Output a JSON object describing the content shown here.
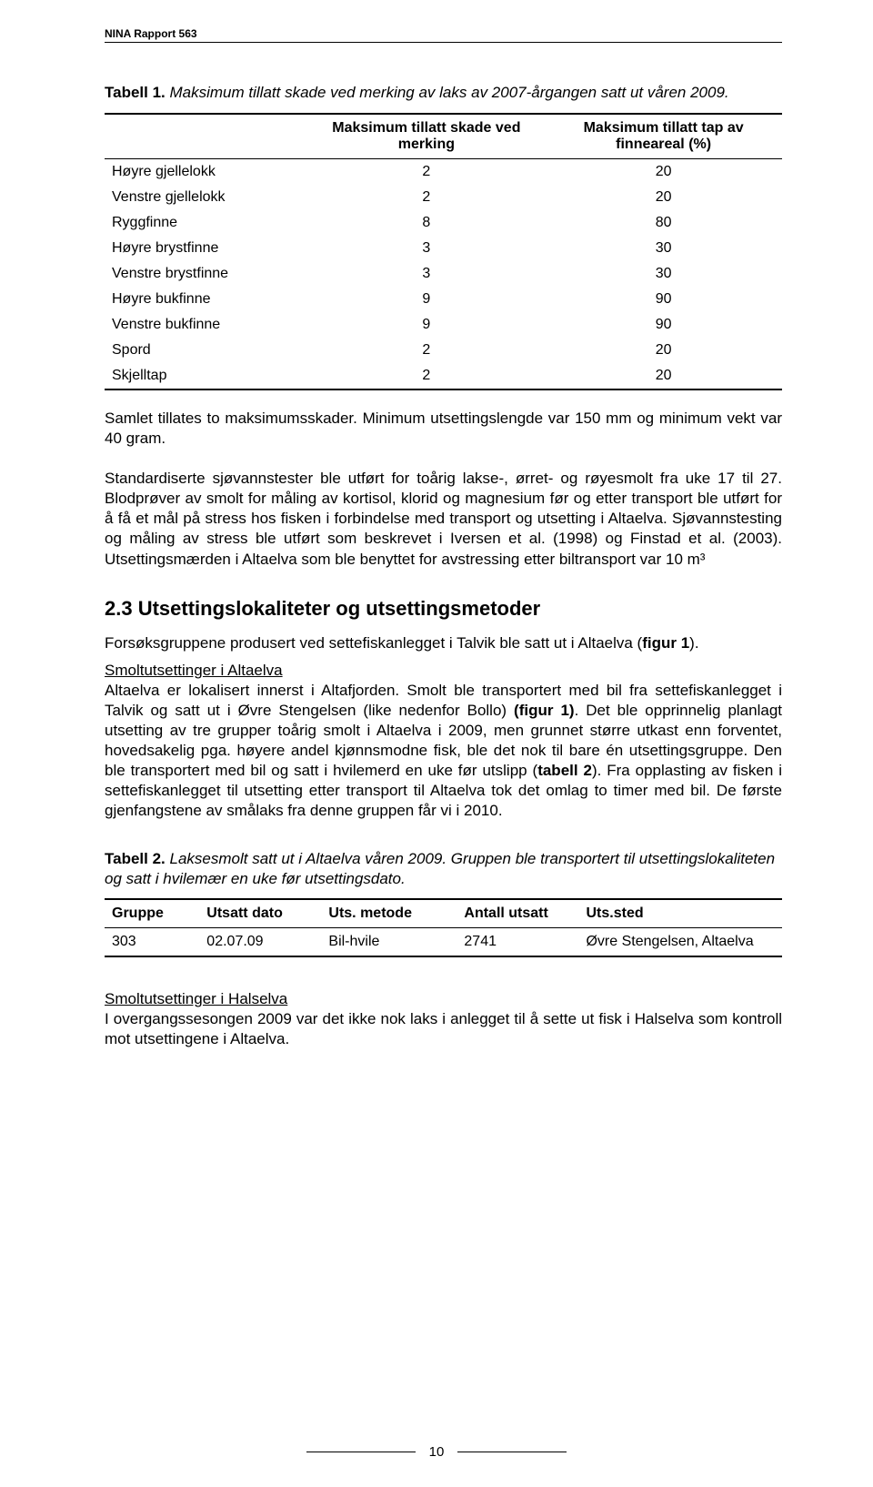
{
  "header": {
    "report_line": "NINA Rapport 563"
  },
  "table1": {
    "caption_bold": "Tabell 1.",
    "caption_rest": "Maksimum tillatt skade ved merking av laks av 2007-årgangen satt ut våren 2009.",
    "columns": [
      "",
      "Maksimum tillatt skade ved merking",
      "Maksimum tillatt tap av finneareal (%)"
    ],
    "rows": [
      [
        "Høyre gjellelokk",
        "2",
        "20"
      ],
      [
        "Venstre gjellelokk",
        "2",
        "20"
      ],
      [
        "Ryggfinne",
        "8",
        "80"
      ],
      [
        "Høyre brystfinne",
        "3",
        "30"
      ],
      [
        "Venstre brystfinne",
        "3",
        "30"
      ],
      [
        "Høyre bukfinne",
        "9",
        "90"
      ],
      [
        "Venstre bukfinne",
        "9",
        "90"
      ],
      [
        "Spord",
        "2",
        "20"
      ],
      [
        "Skjelltap",
        "2",
        "20"
      ]
    ]
  },
  "body": {
    "p1": "Samlet tillates to maksimumsskader. Minimum utsettingslengde var 150 mm og minimum vekt var 40 gram.",
    "p2": "Standardiserte sjøvannstester ble utført for toårig lakse-, ørret- og røyesmolt fra uke 17 til 27. Blodprøver av smolt for måling av kortisol, klorid og magnesium før og etter transport ble utført for å få et mål på stress hos fisken i forbindelse med transport og utsetting i Altaelva. Sjøvannstesting og måling av stress ble utført som beskrevet i Iversen et al. (1998) og Finstad et al. (2003). Utsettingsmærden i Altaelva som ble benyttet for avstressing etter biltransport var 10 m³"
  },
  "section23": {
    "heading": "2.3 Utsettingslokaliteter og utsettingsmetoder",
    "intro_a": "Forsøksgruppene produsert ved settefiskanlegget i Talvik ble satt ut i Altaelva (",
    "intro_b": "figur 1",
    "intro_c": ").",
    "sub1_title": "Smoltutsettinger i Altaelva",
    "sub1_body_a": "Altaelva er lokalisert innerst i Altafjorden. Smolt ble transportert med bil fra settefiskanlegget i Talvik og satt ut i Øvre Stengelsen (like nedenfor Bollo) ",
    "sub1_body_b": "(figur 1)",
    "sub1_body_c": ". Det ble opprinnelig planlagt utsetting av tre grupper toårig smolt i Altaelva i 2009, men grunnet større utkast enn forventet, hovedsakelig pga. høyere andel kjønnsmodne fisk, ble det nok til bare én utsettingsgruppe. Den ble transportert med bil og satt i hvilemerd en uke før utslipp (",
    "sub1_body_d": "tabell 2",
    "sub1_body_e": "). Fra opplasting av fisken i settefiskanlegget til utsetting etter transport til Altaelva tok det omlag to timer med bil. De første gjenfangstene av smålaks fra denne gruppen får vi i 2010."
  },
  "table2": {
    "caption_bold": "Tabell 2.",
    "caption_rest": "Laksesmolt satt ut i Altaelva våren 2009. Gruppen ble transportert til utsettingslokaliteten og satt i hvilemær en uke før utsettingsdato.",
    "columns": [
      "Gruppe",
      "Utsatt dato",
      "Uts. metode",
      "Antall utsatt",
      "Uts.sted"
    ],
    "rows": [
      [
        "303",
        "02.07.09",
        "Bil-hvile",
        "2741",
        "Øvre Stengelsen, Altaelva"
      ]
    ]
  },
  "section_hals": {
    "title": "Smoltutsettinger i Halselva",
    "body": "I overgangssesongen 2009 var det ikke nok laks i anlegget til å sette ut fisk i Halselva som kontroll mot utsettingene i Altaelva."
  },
  "page_number": "10"
}
